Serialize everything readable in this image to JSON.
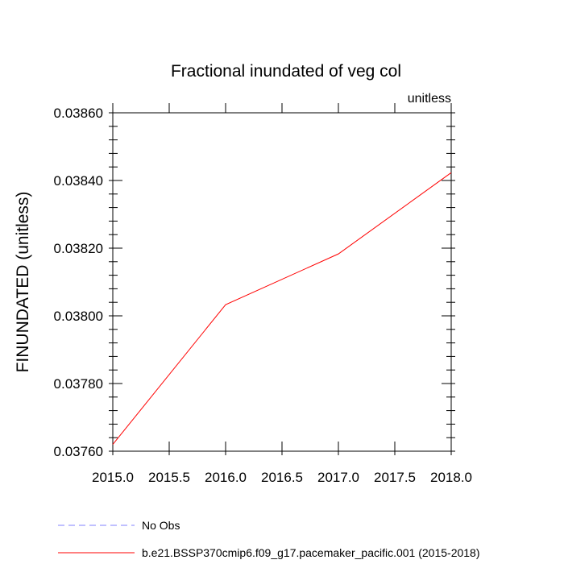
{
  "chart_data": {
    "type": "line",
    "title": "Fractional inundated of veg col",
    "units_label": "unitless",
    "xlabel": "",
    "ylabel": "FINUNDATED  (unitless)",
    "xlim": [
      2015.0,
      2018.0
    ],
    "ylim": [
      0.0376,
      0.0386
    ],
    "x_ticks": [
      2015.0,
      2015.5,
      2016.0,
      2016.5,
      2017.0,
      2017.5,
      2018.0
    ],
    "x_tick_labels": [
      "2015.0",
      "2015.5",
      "2016.0",
      "2016.5",
      "2017.0",
      "2017.5",
      "2018.0"
    ],
    "y_ticks": [
      0.0376,
      0.0378,
      0.038,
      0.0382,
      0.0384,
      0.0386
    ],
    "y_tick_labels": [
      "0.03760",
      "0.03780",
      "0.03800",
      "0.03820",
      "0.03840",
      "0.03860"
    ],
    "grid": false,
    "legend_placement": "bottom",
    "series": [
      {
        "name": "No Obs",
        "color": "#8080ff",
        "dashed": true,
        "x": [],
        "values": []
      },
      {
        "name": "b.e21.BSSP370cmip6.f09_g17.pacemaker_pacific.001 (2015-2018)",
        "color": "#ff0000",
        "dashed": false,
        "x": [
          2015,
          2016,
          2017,
          2018
        ],
        "values": [
          0.03762,
          0.038033,
          0.038183,
          0.038423
        ]
      }
    ]
  }
}
